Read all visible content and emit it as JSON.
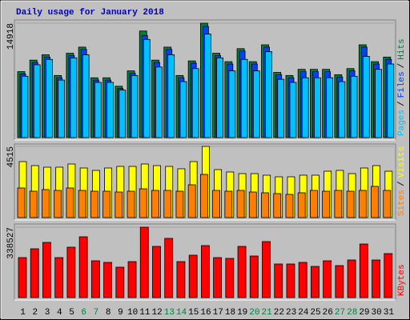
{
  "chart_data": [
    {
      "type": "bar",
      "title": "Daily usage for January 2018",
      "ylim": [
        0,
        14918
      ],
      "yticks": [
        14918
      ],
      "legend_separator": "/",
      "series": [
        {
          "name": "Hits",
          "color": "#008040",
          "values": [
            8600,
            10100,
            10800,
            8100,
            11000,
            11800,
            7800,
            7800,
            6700,
            8700,
            13900,
            10100,
            11800,
            8100,
            10000,
            14918,
            11000,
            9900,
            11600,
            9900,
            12100,
            8500,
            8100,
            8900,
            8900,
            8900,
            8200,
            9000,
            12100,
            9900,
            10500
          ]
        },
        {
          "name": "Files",
          "color": "#0040ff",
          "values": [
            8300,
            9800,
            10500,
            7800,
            10700,
            11500,
            7500,
            7500,
            6400,
            8400,
            13300,
            9800,
            11500,
            7800,
            9700,
            14500,
            10700,
            9600,
            11300,
            9600,
            11800,
            8200,
            7800,
            8600,
            8600,
            8600,
            7900,
            8700,
            11800,
            9600,
            10200
          ]
        },
        {
          "name": "Pages",
          "color": "#00c0ff",
          "values": [
            8000,
            9500,
            10200,
            7500,
            10400,
            10800,
            7200,
            7200,
            6200,
            8100,
            12800,
            9200,
            10800,
            7300,
            9000,
            13500,
            10400,
            8700,
            10200,
            8700,
            11200,
            7600,
            7200,
            7800,
            7800,
            7800,
            7300,
            8000,
            10600,
            8900,
            9600
          ]
        }
      ]
    },
    {
      "type": "bar",
      "ylim": [
        0,
        4515
      ],
      "yticks": [
        4515
      ],
      "legend_separator": "/",
      "series": [
        {
          "name": "Visits",
          "color": "#ffff00",
          "values": [
            3551,
            3297,
            3196,
            3196,
            3399,
            3145,
            2993,
            3145,
            3247,
            3247,
            3399,
            3297,
            3247,
            3095,
            3551,
            4515,
            3044,
            2892,
            2790,
            2790,
            2689,
            2587,
            2587,
            2689,
            2689,
            2942,
            2993,
            2790,
            3145,
            3297,
            2942
          ]
        },
        {
          "name": "Sites",
          "color": "#ff8000",
          "values": [
            1877,
            1674,
            1776,
            1725,
            1877,
            1725,
            1674,
            1674,
            1623,
            1674,
            1826,
            1725,
            1725,
            1674,
            2080,
            2739,
            1725,
            1674,
            1725,
            1623,
            1573,
            1522,
            1471,
            1573,
            1725,
            1674,
            1725,
            1674,
            1725,
            1979,
            1725
          ]
        }
      ]
    },
    {
      "type": "bar",
      "ylim": [
        0,
        338527
      ],
      "yticks": [
        338527
      ],
      "categories": [
        "1",
        "2",
        "3",
        "4",
        "5",
        "6",
        "7",
        "8",
        "9",
        "10",
        "11",
        "12",
        "13",
        "14",
        "15",
        "16",
        "17",
        "18",
        "19",
        "20",
        "21",
        "22",
        "23",
        "24",
        "25",
        "26",
        "27",
        "28",
        "29",
        "30",
        "31"
      ],
      "category_colors": [
        "#000000",
        "#000000",
        "#000000",
        "#000000",
        "#000000",
        "#008040",
        "#008040",
        "#000000",
        "#000000",
        "#000000",
        "#000000",
        "#000000",
        "#008040",
        "#008040",
        "#000000",
        "#000000",
        "#000000",
        "#000000",
        "#000000",
        "#008040",
        "#008040",
        "#000000",
        "#000000",
        "#000000",
        "#000000",
        "#000000",
        "#008040",
        "#008040",
        "#000000",
        "#000000",
        "#000000"
      ],
      "series": [
        {
          "name": "KBytes",
          "color": "#ff0000",
          "values": [
            192350,
            234700,
            265400,
            192350,
            242400,
            292400,
            177000,
            169300,
            146200,
            173100,
            338527,
            246200,
            284700,
            173100,
            203900,
            250100,
            192350,
            188500,
            246200,
            200000,
            269300,
            161600,
            161600,
            169300,
            150000,
            177000,
            153900,
            180800,
            257700,
            180800,
            211600
          ]
        }
      ]
    }
  ]
}
